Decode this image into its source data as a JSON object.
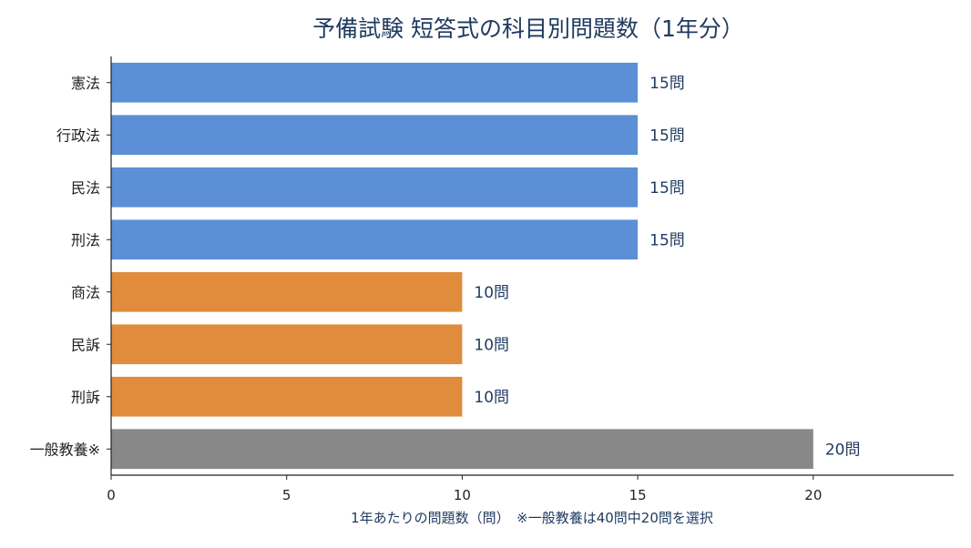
{
  "chart_data": {
    "type": "bar",
    "orientation": "horizontal",
    "title": "予備試験 短答式の科目別問題数（1年分）",
    "xlabel": "1年あたりの問題数（問）　※一般教養は40問中20問を選択",
    "ylabel": "",
    "categories": [
      "憲法",
      "行政法",
      "民法",
      "刑法",
      "商法",
      "民訴",
      "刑訴",
      "一般教養※"
    ],
    "values": [
      15,
      15,
      15,
      15,
      10,
      10,
      10,
      20
    ],
    "value_suffix": "問",
    "data_labels": [
      "15問",
      "15問",
      "15問",
      "15問",
      "10問",
      "10問",
      "10問",
      "20問"
    ],
    "colors": [
      "#5b8fd6",
      "#5b8fd6",
      "#5b8fd6",
      "#5b8fd6",
      "#e08c3c",
      "#e08c3c",
      "#e08c3c",
      "#888888"
    ],
    "xlim": [
      0,
      24
    ],
    "xticks": [
      0,
      5,
      10,
      15,
      20
    ],
    "grid": false
  }
}
